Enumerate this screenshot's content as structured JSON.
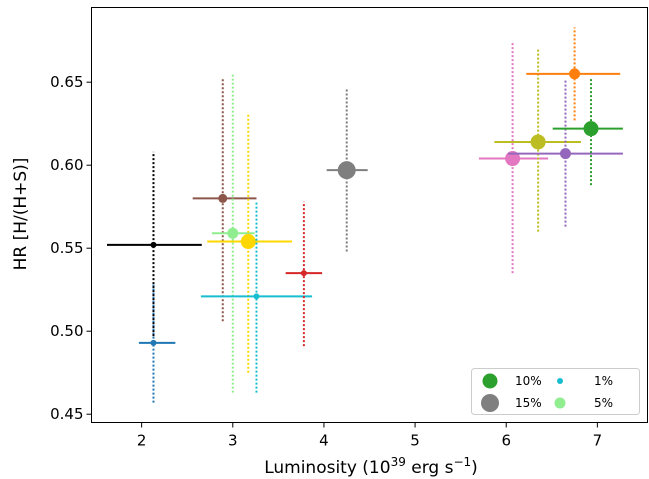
{
  "chart_data": {
    "type": "scatter",
    "title": "",
    "xlabel": "Luminosity (10",
    "xlabel_sup": "39",
    "xlabel_unit": " erg s",
    "xlabel_unit_sup": "−1",
    "xlabel_close": ")",
    "ylabel": "HR [H/(H+S)]",
    "xlim": [
      1.45,
      7.55
    ],
    "ylim": [
      0.445,
      0.695
    ],
    "xticks": [
      {
        "value": 2,
        "label": "2"
      },
      {
        "value": 3,
        "label": "3"
      },
      {
        "value": 4,
        "label": "4"
      },
      {
        "value": 5,
        "label": "5"
      },
      {
        "value": 6,
        "label": "6"
      },
      {
        "value": 7,
        "label": "7"
      }
    ],
    "yticks": [
      {
        "value": 0.45,
        "label": "0.45"
      },
      {
        "value": 0.5,
        "label": "0.50"
      },
      {
        "value": 0.55,
        "label": "0.55"
      },
      {
        "value": 0.6,
        "label": "0.60"
      },
      {
        "value": 0.65,
        "label": "0.65"
      }
    ],
    "grid": false,
    "legend_placement": "lower-right",
    "series": [
      {
        "color": "#1f77b4",
        "x": 2.13,
        "y": 0.493,
        "xerr": [
          1.97,
          2.37
        ],
        "yerr": [
          0.457,
          0.529
        ],
        "size": 1
      },
      {
        "color": "#000000",
        "x": 2.13,
        "y": 0.552,
        "xerr": [
          1.62,
          2.66
        ],
        "yerr": [
          0.497,
          0.608
        ],
        "size": 1
      },
      {
        "color": "#8c564b",
        "x": 2.89,
        "y": 0.58,
        "xerr": [
          2.56,
          3.26
        ],
        "yerr": [
          0.506,
          0.653
        ],
        "size": 3
      },
      {
        "color": "#90ee90",
        "x": 3.0,
        "y": 0.559,
        "xerr": [
          2.77,
          3.24
        ],
        "yerr": [
          0.463,
          0.655
        ],
        "size": 5
      },
      {
        "color": "#ffd700",
        "x": 3.17,
        "y": 0.554,
        "xerr": [
          2.72,
          3.65
        ],
        "yerr": [
          0.475,
          0.631
        ],
        "size": 10
      },
      {
        "color": "#17becf",
        "x": 3.26,
        "y": 0.521,
        "xerr": [
          2.65,
          3.87
        ],
        "yerr": [
          0.463,
          0.578
        ],
        "size": 1
      },
      {
        "color": "#d62728",
        "x": 3.78,
        "y": 0.535,
        "xerr": [
          3.58,
          3.98
        ],
        "yerr": [
          0.491,
          0.578
        ],
        "size": 1
      },
      {
        "color": "#7f7f7f",
        "x": 4.25,
        "y": 0.597,
        "xerr": [
          4.03,
          4.48
        ],
        "yerr": [
          0.548,
          0.646
        ],
        "size": 15
      },
      {
        "color": "#e377c2",
        "x": 6.07,
        "y": 0.604,
        "xerr": [
          5.7,
          6.46
        ],
        "yerr": [
          0.535,
          0.674
        ],
        "size": 10
      },
      {
        "color": "#bcbd22",
        "x": 6.35,
        "y": 0.614,
        "xerr": [
          5.87,
          6.82
        ],
        "yerr": [
          0.56,
          0.67
        ],
        "size": 10
      },
      {
        "color": "#9467bd",
        "x": 6.65,
        "y": 0.607,
        "xerr": [
          6.02,
          7.28
        ],
        "yerr": [
          0.563,
          0.652
        ],
        "size": 5
      },
      {
        "color": "#ff7f0e",
        "x": 6.75,
        "y": 0.655,
        "xerr": [
          6.22,
          7.25
        ],
        "yerr": [
          0.627,
          0.683
        ],
        "size": 5
      },
      {
        "color": "#2ca02c",
        "x": 6.93,
        "y": 0.622,
        "xerr": [
          6.51,
          7.28
        ],
        "yerr": [
          0.588,
          0.653
        ],
        "size": 10
      }
    ],
    "legend": [
      {
        "label": "10%",
        "color": "#2ca02c",
        "size": 10
      },
      {
        "label": "15%",
        "color": "#7f7f7f",
        "size": 15
      },
      {
        "label": "1%",
        "color": "#17becf",
        "size": 1
      },
      {
        "label": "5%",
        "color": "#90ee90",
        "size": 5
      }
    ]
  }
}
